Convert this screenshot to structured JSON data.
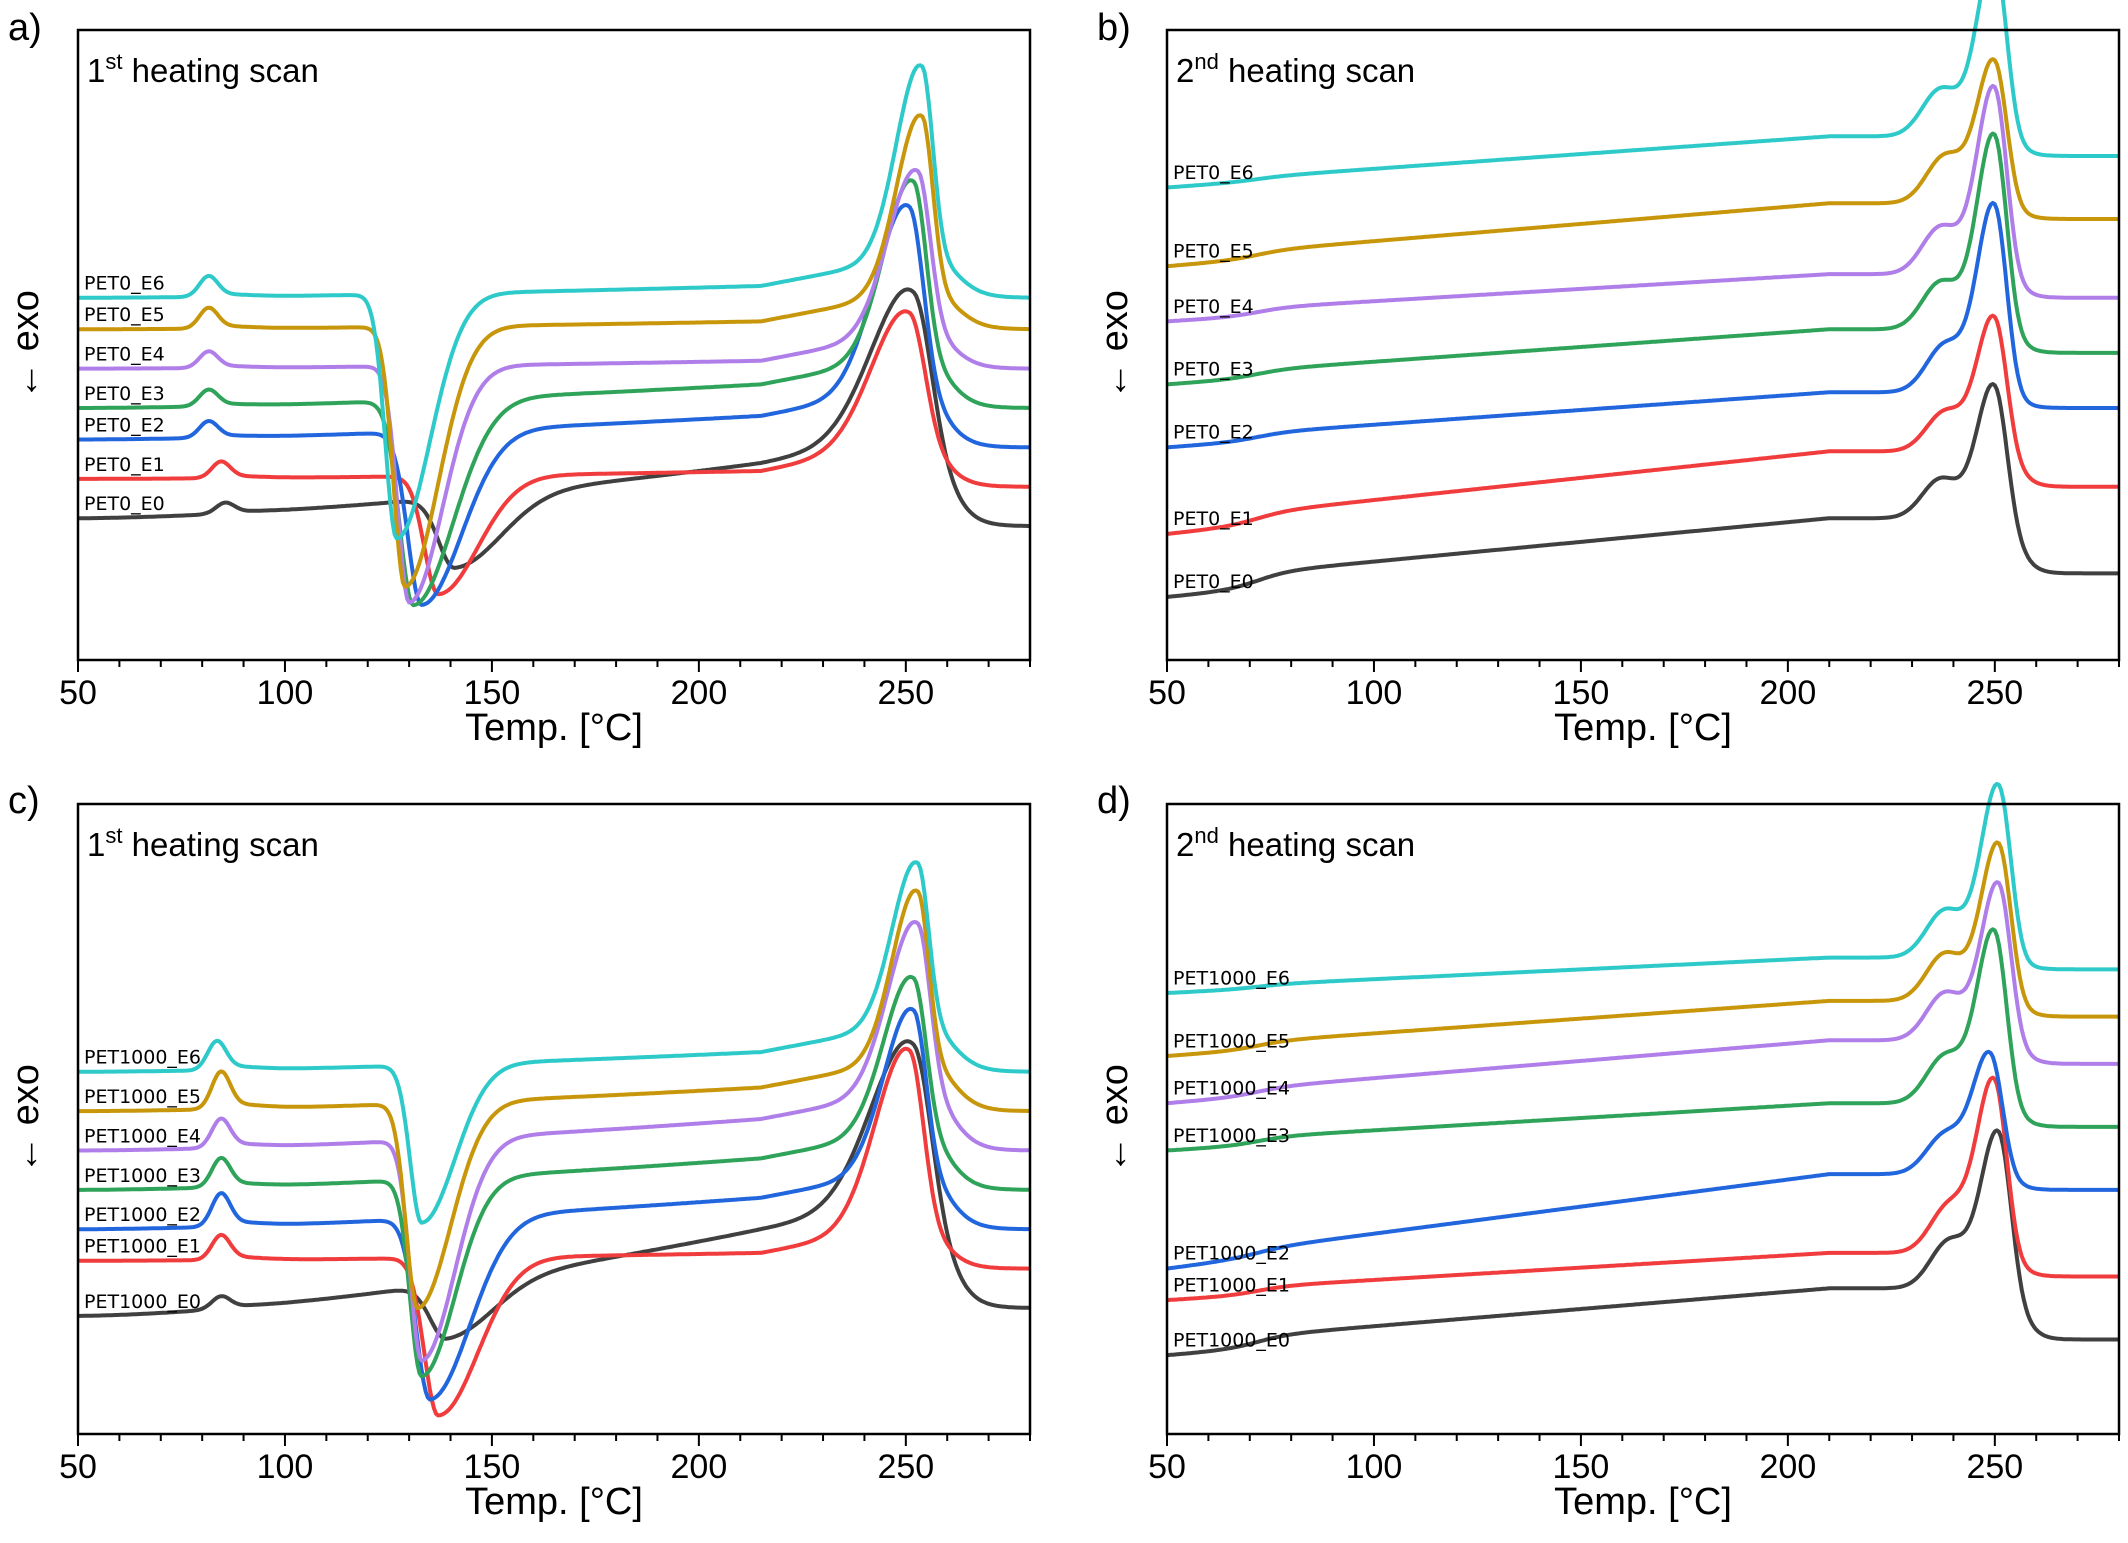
{
  "colors": {
    "E0": "#404040",
    "E1": "#f03c3c",
    "E2": "#2266dd",
    "E3": "#2fa35a",
    "E4": "#b07ee8",
    "E5": "#c8960a",
    "E6": "#2ec9c9"
  },
  "chart_data": [
    {
      "type": "line",
      "panel": "a)",
      "scan_prefix": "1",
      "scan_sup": "st",
      "scan_suffix": " heating scan",
      "xlabel": "Temp. [°C]",
      "ylabel": "← exo",
      "xlim": [
        50,
        280
      ],
      "xticks": [
        50,
        100,
        150,
        200,
        250
      ],
      "xtick_labels": [
        "50",
        "100",
        "150",
        "200",
        "250"
      ],
      "curve_model": "first",
      "series": [
        {
          "name": "PET0_E0",
          "color_key": "E0",
          "baseline_start": 1.8,
          "baseline_end": 2.5,
          "tg": 86,
          "tg_height": 0.13,
          "cc_temp": 141,
          "cc_depth": 0.9,
          "cc_width": 7,
          "melt_temp": 252,
          "melt_height": 2.0,
          "melt_width": 10,
          "end_value": 1.7
        },
        {
          "name": "PET0_E1",
          "color_key": "E1",
          "baseline_start": 2.3,
          "baseline_end": 2.4,
          "tg": 85,
          "tg_height": 0.2,
          "cc_temp": 137,
          "cc_depth": 1.5,
          "cc_width": 6,
          "melt_temp": 251,
          "melt_height": 1.8,
          "melt_width": 9,
          "end_value": 2.2
        },
        {
          "name": "PET0_E2",
          "color_key": "E2",
          "baseline_start": 2.8,
          "baseline_end": 3.1,
          "tg": 82,
          "tg_height": 0.2,
          "cc_temp": 133,
          "cc_depth": 2.2,
          "cc_width": 6,
          "melt_temp": 251,
          "melt_height": 2.5,
          "melt_width": 8,
          "end_value": 2.7
        },
        {
          "name": "PET0_E3",
          "color_key": "E3",
          "baseline_start": 3.2,
          "baseline_end": 3.5,
          "tg": 82,
          "tg_height": 0.2,
          "cc_temp": 131,
          "cc_depth": 2.6,
          "cc_width": 6,
          "melt_temp": 252,
          "melt_height": 2.4,
          "melt_width": 7,
          "end_value": 3.2
        },
        {
          "name": "PET0_E4",
          "color_key": "E4",
          "baseline_start": 3.7,
          "baseline_end": 3.8,
          "tg": 82,
          "tg_height": 0.2,
          "cc_temp": 130,
          "cc_depth": 3.0,
          "cc_width": 5,
          "melt_temp": 253,
          "melt_height": 2.2,
          "melt_width": 7,
          "end_value": 3.7
        },
        {
          "name": "PET0_E5",
          "color_key": "E5",
          "baseline_start": 4.2,
          "baseline_end": 4.3,
          "tg": 82,
          "tg_height": 0.25,
          "cc_temp": 129,
          "cc_depth": 3.3,
          "cc_width": 5,
          "melt_temp": 254,
          "melt_height": 2.4,
          "melt_width": 6,
          "end_value": 4.2
        },
        {
          "name": "PET0_E6",
          "color_key": "E6",
          "baseline_start": 4.6,
          "baseline_end": 4.75,
          "tg": 82,
          "tg_height": 0.25,
          "cc_temp": 127,
          "cc_depth": 3.1,
          "cc_width": 5,
          "melt_temp": 254,
          "melt_height": 2.6,
          "melt_width": 6,
          "end_value": 4.6
        }
      ]
    },
    {
      "type": "line",
      "panel": "b)",
      "scan_prefix": "2",
      "scan_sup": "nd",
      "scan_suffix": " heating scan",
      "xlabel": "Temp. [°C]",
      "ylabel": "← exo",
      "xlim": [
        50,
        280
      ],
      "xticks": [
        50,
        100,
        150,
        200,
        250
      ],
      "xtick_labels": [
        "50",
        "100",
        "150",
        "200",
        "250"
      ],
      "curve_model": "second",
      "series": [
        {
          "name": "PET0_E0",
          "color_key": "E0",
          "baseline_start": 0.8,
          "baseline_end": 1.6,
          "tg_height": 0.2,
          "melt_temp": 250,
          "melt_height": 1.8,
          "shoulder_temp": 237,
          "shoulder_height": 0.5,
          "end_value": 1.1
        },
        {
          "name": "PET0_E1",
          "color_key": "E1",
          "baseline_start": 1.6,
          "baseline_end": 2.5,
          "tg_height": 0.15,
          "melt_temp": 250,
          "melt_height": 1.8,
          "shoulder_temp": 238,
          "shoulder_height": 0.5,
          "end_value": 2.2
        },
        {
          "name": "PET0_E2",
          "color_key": "E2",
          "baseline_start": 2.7,
          "baseline_end": 3.3,
          "tg_height": 0.1,
          "melt_temp": 250,
          "melt_height": 2.5,
          "shoulder_temp": 238,
          "shoulder_height": 0.6,
          "end_value": 3.2
        },
        {
          "name": "PET0_E3",
          "color_key": "E3",
          "baseline_start": 3.5,
          "baseline_end": 4.1,
          "tg_height": 0.1,
          "melt_temp": 250,
          "melt_height": 2.6,
          "shoulder_temp": 237,
          "shoulder_height": 0.6,
          "end_value": 3.9
        },
        {
          "name": "PET0_E4",
          "color_key": "E4",
          "baseline_start": 4.3,
          "baseline_end": 4.8,
          "tg_height": 0.1,
          "melt_temp": 250,
          "melt_height": 2.5,
          "shoulder_temp": 237,
          "shoulder_height": 0.6,
          "end_value": 4.6
        },
        {
          "name": "PET0_E5",
          "color_key": "E5",
          "baseline_start": 5.0,
          "baseline_end": 5.7,
          "tg_height": 0.1,
          "melt_temp": 250,
          "melt_height": 1.9,
          "shoulder_temp": 238,
          "shoulder_height": 0.6,
          "end_value": 5.6
        },
        {
          "name": "PET0_E6",
          "color_key": "E6",
          "baseline_start": 6.0,
          "baseline_end": 6.6,
          "tg_height": 0.05,
          "melt_temp": 250,
          "melt_height": 2.4,
          "shoulder_temp": 237,
          "shoulder_height": 0.6,
          "end_value": 6.4
        }
      ]
    },
    {
      "type": "line",
      "panel": "c)",
      "scan_prefix": "1",
      "scan_sup": "st",
      "scan_suffix": " heating scan",
      "xlabel": "Temp. [°C]",
      "ylabel": "← exo",
      "xlim": [
        50,
        280
      ],
      "xticks": [
        50,
        100,
        150,
        200,
        250
      ],
      "xtick_labels": [
        "50",
        "100",
        "150",
        "200",
        "250"
      ],
      "curve_model": "first",
      "series": [
        {
          "name": "PET1000_E0",
          "color_key": "E0",
          "baseline_start": 1.5,
          "baseline_end": 2.6,
          "tg": 85,
          "tg_height": 0.15,
          "cc_temp": 139,
          "cc_depth": 0.7,
          "cc_width": 7,
          "melt_temp": 252,
          "melt_height": 2.2,
          "melt_width": 10,
          "end_value": 1.6
        },
        {
          "name": "PET1000_E1",
          "color_key": "E1",
          "baseline_start": 2.2,
          "baseline_end": 2.3,
          "tg": 85,
          "tg_height": 0.3,
          "cc_temp": 137,
          "cc_depth": 2.0,
          "cc_width": 6,
          "melt_temp": 251,
          "melt_height": 2.4,
          "melt_width": 8,
          "end_value": 2.1
        },
        {
          "name": "PET1000_E2",
          "color_key": "E2",
          "baseline_start": 2.6,
          "baseline_end": 3.0,
          "tg": 85,
          "tg_height": 0.4,
          "cc_temp": 135,
          "cc_depth": 2.3,
          "cc_width": 6,
          "melt_temp": 252,
          "melt_height": 2.2,
          "melt_width": 7,
          "end_value": 2.6
        },
        {
          "name": "PET1000_E3",
          "color_key": "E3",
          "baseline_start": 3.1,
          "baseline_end": 3.5,
          "tg": 85,
          "tg_height": 0.35,
          "cc_temp": 133,
          "cc_depth": 2.5,
          "cc_width": 5,
          "melt_temp": 252,
          "melt_height": 2.1,
          "melt_width": 7,
          "end_value": 3.1
        },
        {
          "name": "PET1000_E4",
          "color_key": "E4",
          "baseline_start": 3.6,
          "baseline_end": 4.0,
          "tg": 85,
          "tg_height": 0.35,
          "cc_temp": 133,
          "cc_depth": 2.8,
          "cc_width": 5,
          "melt_temp": 253,
          "melt_height": 2.3,
          "melt_width": 7,
          "end_value": 3.6
        },
        {
          "name": "PET1000_E5",
          "color_key": "E5",
          "baseline_start": 4.1,
          "baseline_end": 4.4,
          "tg": 85,
          "tg_height": 0.45,
          "cc_temp": 132,
          "cc_depth": 2.6,
          "cc_width": 5,
          "melt_temp": 253,
          "melt_height": 2.3,
          "melt_width": 6,
          "end_value": 4.1
        },
        {
          "name": "PET1000_E6",
          "color_key": "E6",
          "baseline_start": 4.6,
          "baseline_end": 4.85,
          "tg": 84,
          "tg_height": 0.35,
          "cc_temp": 133,
          "cc_depth": 2.0,
          "cc_width": 5,
          "melt_temp": 253,
          "melt_height": 2.2,
          "melt_width": 6,
          "end_value": 4.6
        }
      ]
    },
    {
      "type": "line",
      "panel": "d)",
      "scan_prefix": "2",
      "scan_sup": "nd",
      "scan_suffix": " heating scan",
      "xlabel": "Temp. [°C]",
      "ylabel": "← exo",
      "xlim": [
        50,
        280
      ],
      "xticks": [
        50,
        100,
        150,
        200,
        250
      ],
      "xtick_labels": [
        "50",
        "100",
        "150",
        "200",
        "250"
      ],
      "curve_model": "second",
      "series": [
        {
          "name": "PET1000_E0",
          "color_key": "E0",
          "baseline_start": 1.0,
          "baseline_end": 1.7,
          "tg_height": 0.15,
          "melt_temp": 251,
          "melt_height": 2.1,
          "shoulder_temp": 239,
          "shoulder_height": 0.6,
          "end_value": 1.2
        },
        {
          "name": "PET1000_E1",
          "color_key": "E1",
          "baseline_start": 1.7,
          "baseline_end": 2.2,
          "tg_height": 0.1,
          "melt_temp": 250,
          "melt_height": 2.3,
          "shoulder_temp": 239,
          "shoulder_height": 0.6,
          "end_value": 2.0
        },
        {
          "name": "PET1000_E2",
          "color_key": "E2",
          "baseline_start": 2.1,
          "baseline_end": 3.2,
          "tg_height": 0.1,
          "melt_temp": 249,
          "melt_height": 1.6,
          "shoulder_temp": 238,
          "shoulder_height": 0.5,
          "end_value": 3.1
        },
        {
          "name": "PET1000_E3",
          "color_key": "E3",
          "baseline_start": 3.6,
          "baseline_end": 4.1,
          "tg_height": 0.1,
          "melt_temp": 250,
          "melt_height": 2.3,
          "shoulder_temp": 238,
          "shoulder_height": 0.6,
          "end_value": 3.9
        },
        {
          "name": "PET1000_E4",
          "color_key": "E4",
          "baseline_start": 4.2,
          "baseline_end": 4.9,
          "tg_height": 0.1,
          "melt_temp": 251,
          "melt_height": 2.1,
          "shoulder_temp": 238,
          "shoulder_height": 0.6,
          "end_value": 4.7
        },
        {
          "name": "PET1000_E5",
          "color_key": "E5",
          "baseline_start": 4.8,
          "baseline_end": 5.4,
          "tg_height": 0.1,
          "melt_temp": 251,
          "melt_height": 2.1,
          "shoulder_temp": 238,
          "shoulder_height": 0.6,
          "end_value": 5.3
        },
        {
          "name": "PET1000_E6",
          "color_key": "E6",
          "baseline_start": 5.6,
          "baseline_end": 6.0,
          "tg_height": 0.05,
          "melt_temp": 251,
          "melt_height": 2.3,
          "shoulder_temp": 238,
          "shoulder_height": 0.6,
          "end_value": 5.9
        }
      ]
    }
  ]
}
